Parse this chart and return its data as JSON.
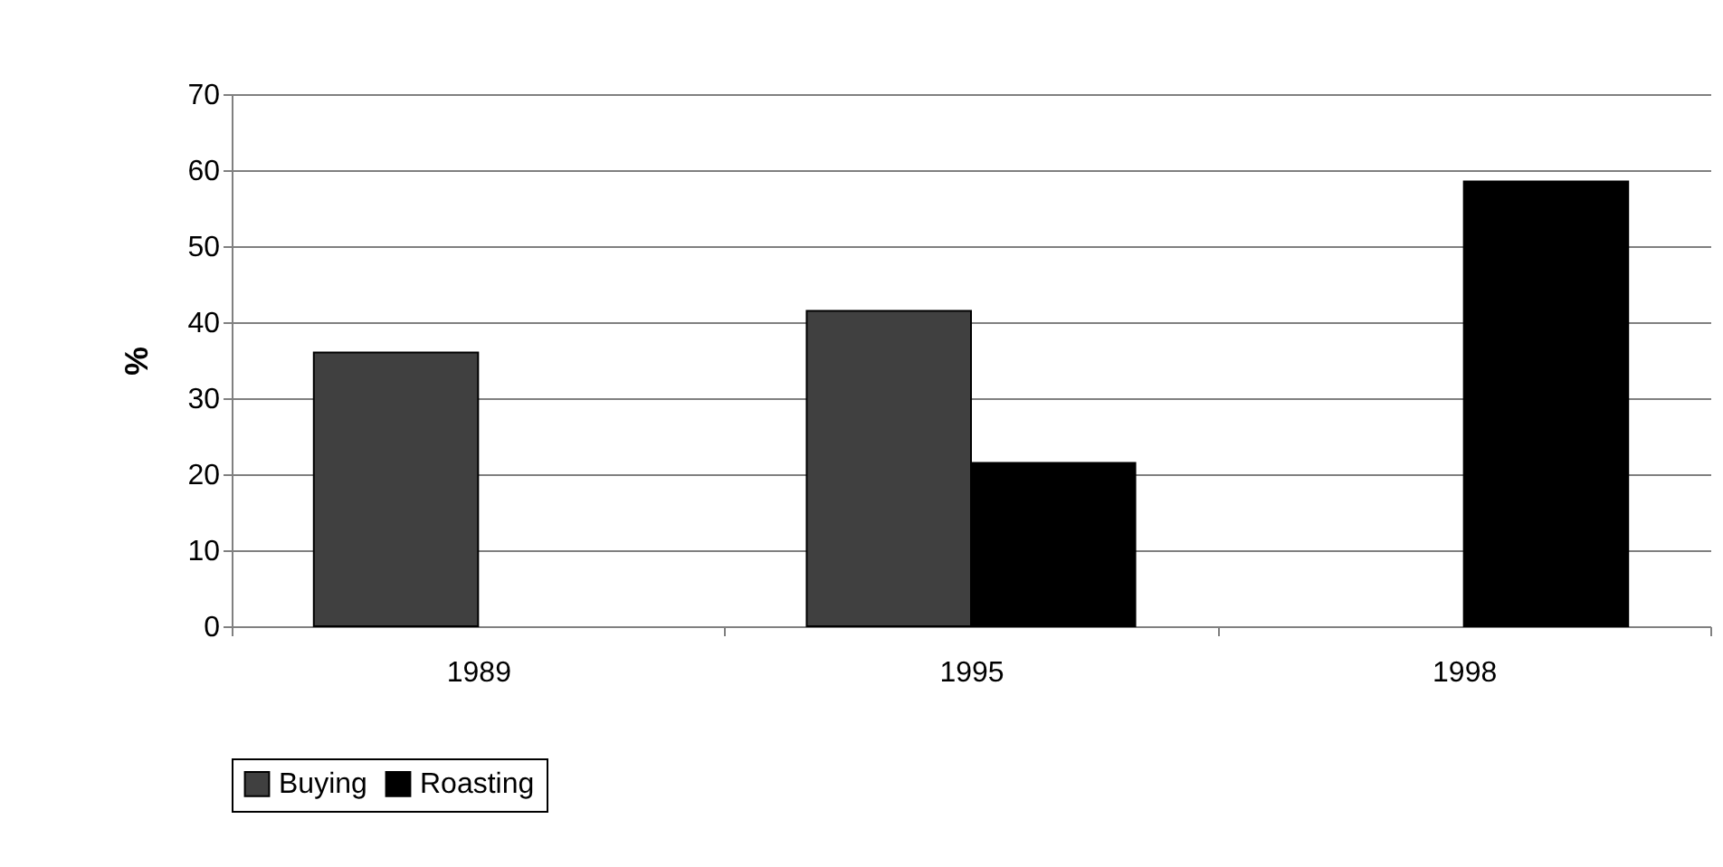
{
  "chart_data": {
    "type": "bar",
    "ylabel": "%",
    "categories": [
      "1989",
      "1995",
      "1998"
    ],
    "series": [
      {
        "name": "Buying",
        "color": "#404040",
        "values": [
          36,
          41.5,
          null
        ]
      },
      {
        "name": "Roasting",
        "color": "#000000",
        "values": [
          null,
          21.5,
          58.5
        ]
      }
    ],
    "ylim": [
      0,
      70
    ],
    "yticks": [
      0,
      10,
      20,
      30,
      40,
      50,
      60,
      70
    ],
    "grid": "y",
    "legend": "bottom"
  }
}
